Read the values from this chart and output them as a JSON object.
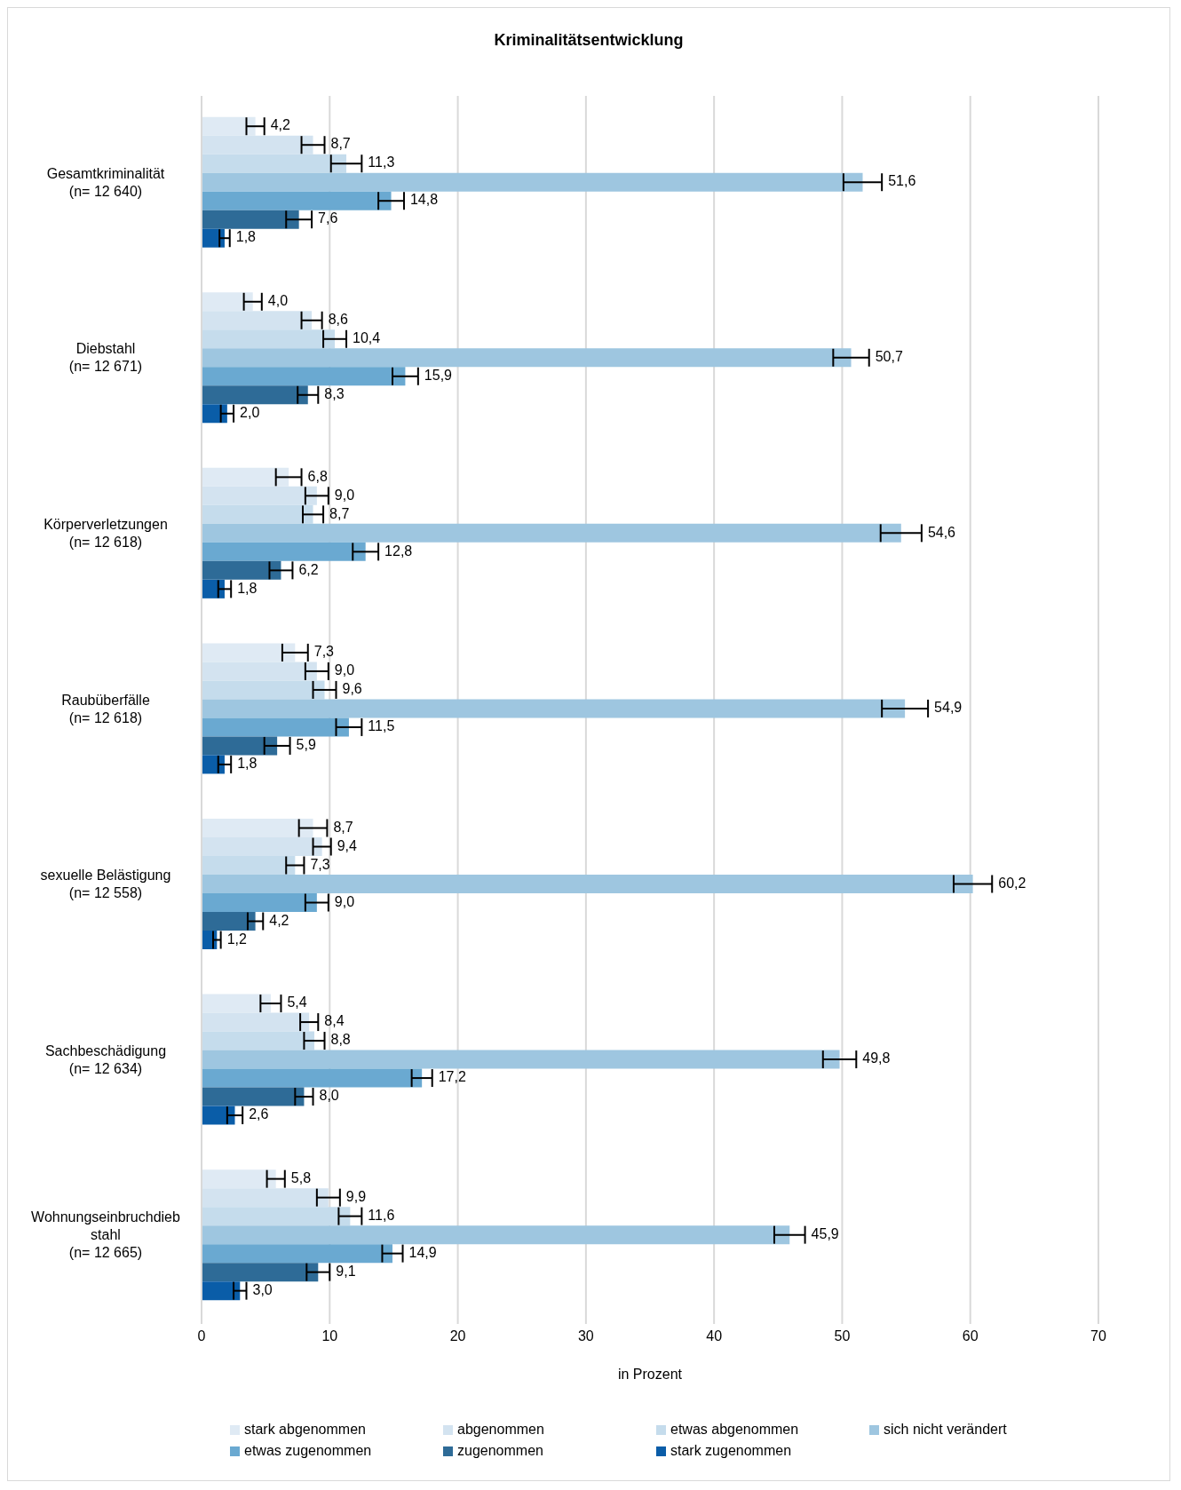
{
  "chart_data": {
    "type": "bar",
    "orientation": "horizontal",
    "title": "Kriminalitätsentwicklung",
    "xlabel": "in Prozent",
    "categories": [
      "Gesamtkriminalität (n= 12 640)",
      "Diebstahl (n= 12 671)",
      "Körperverletzungen (n= 12 618)",
      "Raubüberfälle (n= 12 618)",
      "sexuelle Belästigung (n= 12 558)",
      "Sachbeschädigung (n= 12 634)",
      "Wohnungseinbruchdiebstahl (n= 12 665)"
    ],
    "series": [
      {
        "name": "stark abgenommen",
        "color": "#dfeaf4",
        "values": [
          4.2,
          4.0,
          6.8,
          7.3,
          8.7,
          5.4,
          5.8
        ],
        "value_labels": [
          "4,2",
          "4,0",
          "6,8",
          "7,3",
          "8,7",
          "5,4",
          "5,8"
        ],
        "errors": [
          0.7,
          0.7,
          1.0,
          1.0,
          1.1,
          0.8,
          0.7
        ]
      },
      {
        "name": "abgenommen",
        "color": "#d3e3f0",
        "values": [
          8.7,
          8.6,
          9.0,
          9.0,
          9.4,
          8.4,
          9.9
        ],
        "value_labels": [
          "8,7",
          "8,6",
          "9,0",
          "9,0",
          "9,4",
          "8,4",
          "9,9"
        ],
        "errors": [
          0.9,
          0.8,
          0.9,
          0.9,
          0.7,
          0.7,
          0.9
        ]
      },
      {
        "name": "etwas abgenommen",
        "color": "#c5dcec",
        "values": [
          11.3,
          10.4,
          8.7,
          9.6,
          7.3,
          8.8,
          11.6
        ],
        "value_labels": [
          "11,3",
          "10,4",
          "8,7",
          "9,6",
          "7,3",
          "8,8",
          "11,6"
        ],
        "errors": [
          1.2,
          0.9,
          0.8,
          0.9,
          0.7,
          0.8,
          0.9
        ]
      },
      {
        "name": "sich nicht verändert",
        "color": "#9ec6e0",
        "values": [
          51.6,
          50.7,
          54.6,
          54.9,
          60.2,
          49.8,
          45.9
        ],
        "value_labels": [
          "51,6",
          "50,7",
          "54,6",
          "54,9",
          "60,2",
          "49,8",
          "45,9"
        ],
        "errors": [
          1.5,
          1.4,
          1.6,
          1.8,
          1.5,
          1.3,
          1.2
        ]
      },
      {
        "name": "etwas zugenommen",
        "color": "#6aa9d1",
        "values": [
          14.8,
          15.9,
          12.8,
          11.5,
          9.0,
          17.2,
          14.9
        ],
        "value_labels": [
          "14,8",
          "15,9",
          "12,8",
          "11,5",
          "9,0",
          "17,2",
          "14,9"
        ],
        "errors": [
          1.0,
          1.0,
          1.0,
          1.0,
          0.9,
          0.8,
          0.8
        ]
      },
      {
        "name": "zugenommen",
        "color": "#2e6b97",
        "values": [
          7.6,
          8.3,
          6.2,
          5.9,
          4.2,
          8.0,
          9.1
        ],
        "value_labels": [
          "7,6",
          "8,3",
          "6,2",
          "5,9",
          "4,2",
          "8,0",
          "9,1"
        ],
        "errors": [
          1.0,
          0.8,
          0.9,
          1.0,
          0.6,
          0.7,
          0.9
        ]
      },
      {
        "name": "stark zugenommen",
        "color": "#0a5da8",
        "values": [
          1.8,
          2.0,
          1.8,
          1.8,
          1.2,
          2.6,
          3.0
        ],
        "value_labels": [
          "1,8",
          "2,0",
          "1,8",
          "1,8",
          "1,2",
          "2,6",
          "3,0"
        ],
        "errors": [
          0.4,
          0.5,
          0.5,
          0.5,
          0.3,
          0.6,
          0.5
        ]
      }
    ],
    "xlim": [
      0,
      70
    ],
    "xticks": [
      0,
      10,
      20,
      30,
      40,
      50,
      60,
      70
    ],
    "grid": "x",
    "legend": "bottom"
  }
}
